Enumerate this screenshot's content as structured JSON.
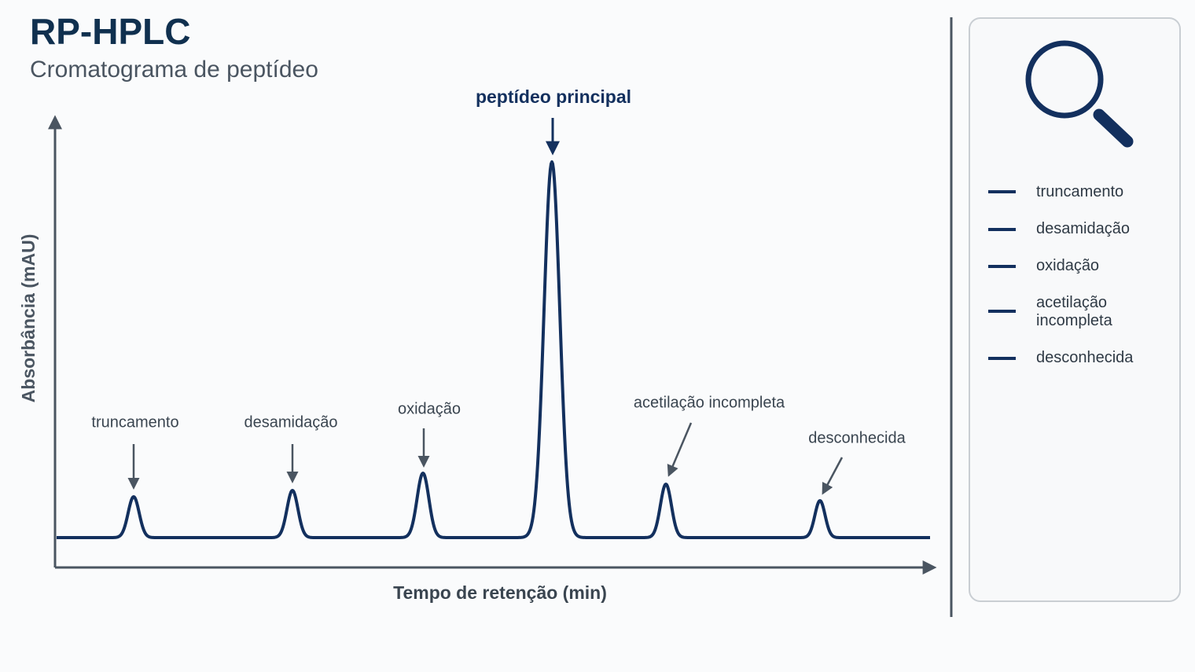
{
  "header": {
    "title": "RP-HPLC",
    "subtitle": "Cromatograma de peptídeo"
  },
  "axes": {
    "y_label": "Absorbância (mAU)",
    "x_label": "Tempo de retenção (min)"
  },
  "main_peak": {
    "label": "peptídeo principal"
  },
  "peaks": [
    {
      "label": "truncamento"
    },
    {
      "label": "desamidação"
    },
    {
      "label": "oxidação"
    },
    {
      "label": "acetilação incompleta"
    },
    {
      "label": "desconhecida"
    }
  ],
  "legend": {
    "items": [
      "truncamento",
      "desamidação",
      "oxidação",
      "acetilação incompleta",
      "desconhecida"
    ]
  }
}
